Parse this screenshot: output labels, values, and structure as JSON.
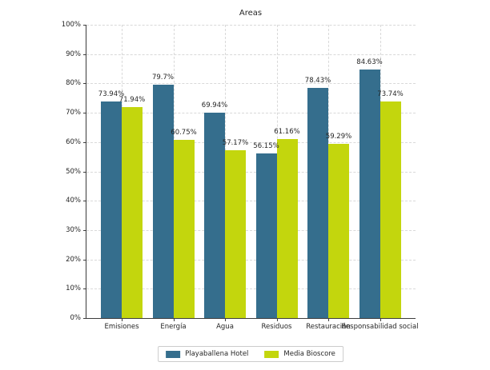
{
  "chart_data": {
    "type": "bar",
    "title": "Areas",
    "categories": [
      "Emisiones",
      "Energía",
      "Agua",
      "Residuos",
      "Restauración",
      "Responsabilidad social"
    ],
    "series": [
      {
        "name": "Playaballena Hotel",
        "color": "#356e8d",
        "values": [
          73.94,
          79.7,
          69.94,
          56.15,
          78.43,
          84.63
        ]
      },
      {
        "name": "Media Bioscore",
        "color": "#c3d60d",
        "values": [
          71.94,
          60.75,
          57.17,
          61.16,
          59.29,
          73.74
        ]
      }
    ],
    "value_suffix": "%",
    "data_labels": [
      [
        "73.94%",
        "79.7%",
        "69.94%",
        "56.15%",
        "78.43%",
        "84.63%"
      ],
      [
        "71.94%",
        "60.75%",
        "57.17%",
        "61.16%",
        "59.29%",
        "73.74%"
      ]
    ],
    "ylim": [
      0,
      100
    ],
    "ytick_labels": [
      "0%",
      "10%",
      "20%",
      "30%",
      "40%",
      "50%",
      "60%",
      "70%",
      "80%",
      "90%",
      "100%"
    ],
    "grid": "dashed horizontal and vertical",
    "legend_position": "bottom center",
    "colors": {
      "bar_series_1": "#356e8d",
      "bar_series_2": "#c3d60d",
      "gridline": "#d9d9d9",
      "axis": "#3c3c3c",
      "text": "#262626",
      "legend_border": "#cccccc",
      "background": "#ffffff"
    }
  }
}
